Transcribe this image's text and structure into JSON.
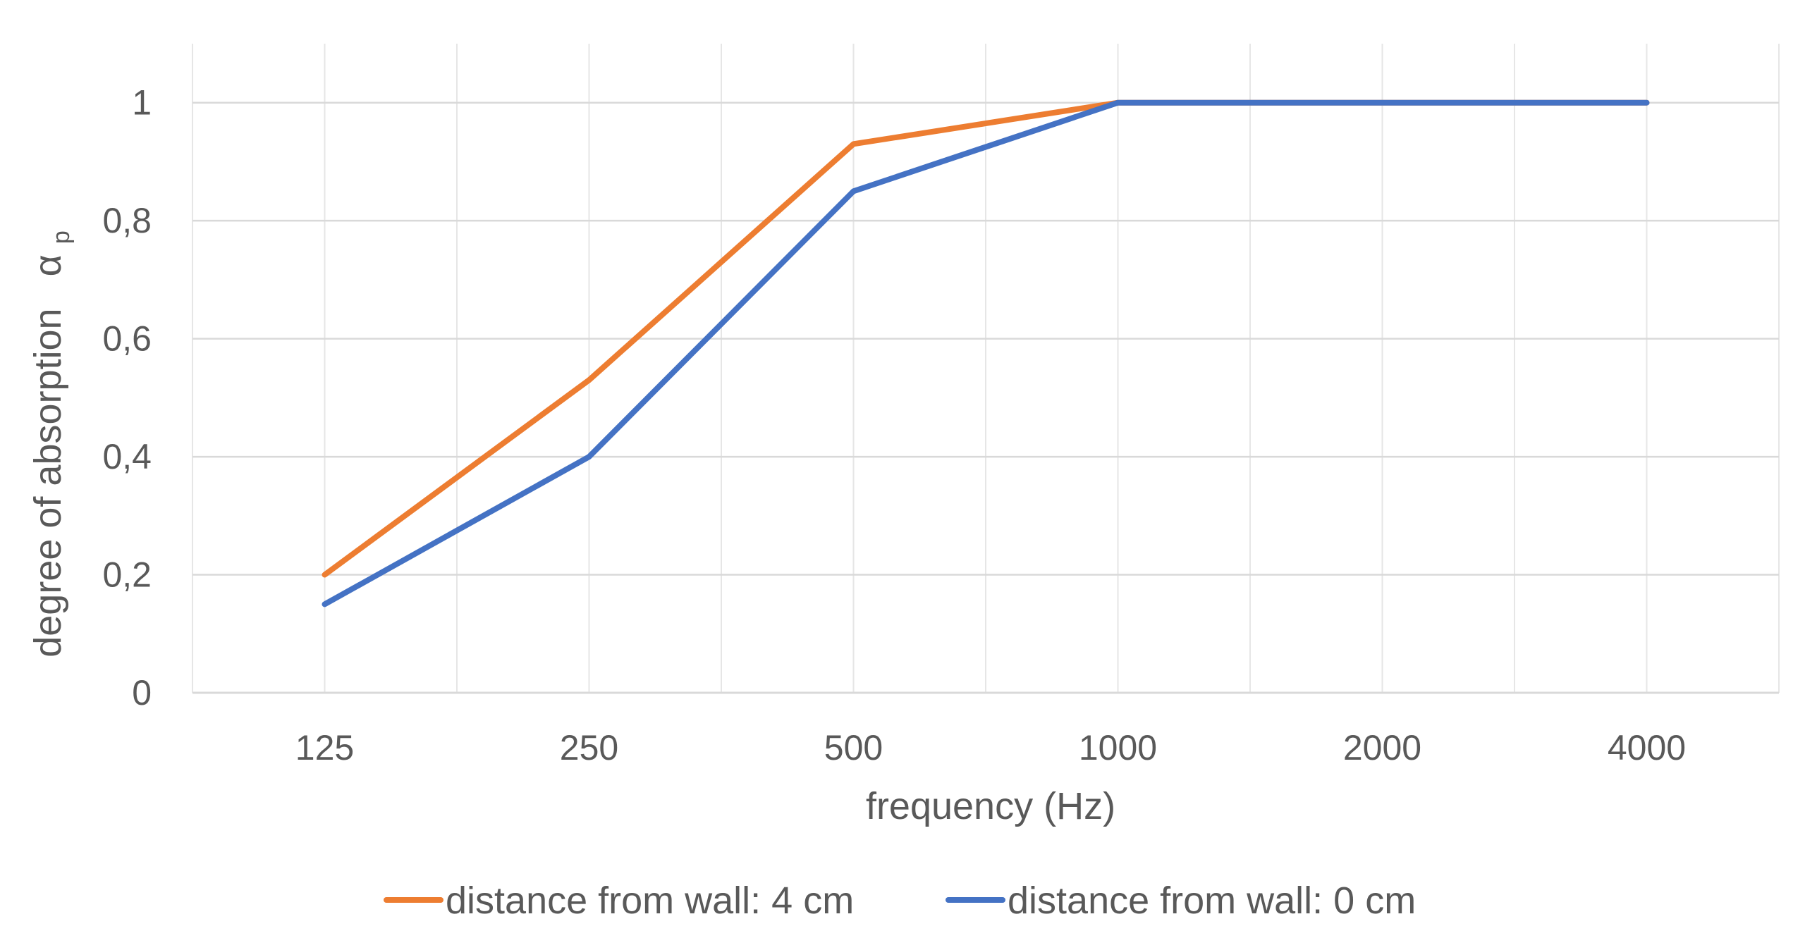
{
  "chart_data": {
    "type": "line",
    "title": "",
    "xlabel": "frequency (Hz)",
    "ylabel": "degree of absorption",
    "ylabel_symbol": "α",
    "ylabel_subscript": "p",
    "categories": [
      "125",
      "250",
      "500",
      "1000",
      "2000",
      "4000"
    ],
    "ylim": [
      0,
      1.1
    ],
    "yticks": [
      0,
      0.2,
      0.4,
      0.6,
      0.8,
      1
    ],
    "ytick_labels": [
      "0",
      "0,2",
      "0,4",
      "0,6",
      "0,8",
      "1"
    ],
    "grid": true,
    "legend_position": "bottom",
    "series": [
      {
        "name": "distance from wall: 4 cm",
        "color": "#ED7D31",
        "values": [
          0.2,
          0.53,
          0.93,
          1.0,
          1.0,
          1.0
        ]
      },
      {
        "name": "distance from wall: 0 cm",
        "color": "#4472C4",
        "values": [
          0.15,
          0.4,
          0.85,
          1.0,
          1.0,
          1.0
        ]
      }
    ]
  }
}
